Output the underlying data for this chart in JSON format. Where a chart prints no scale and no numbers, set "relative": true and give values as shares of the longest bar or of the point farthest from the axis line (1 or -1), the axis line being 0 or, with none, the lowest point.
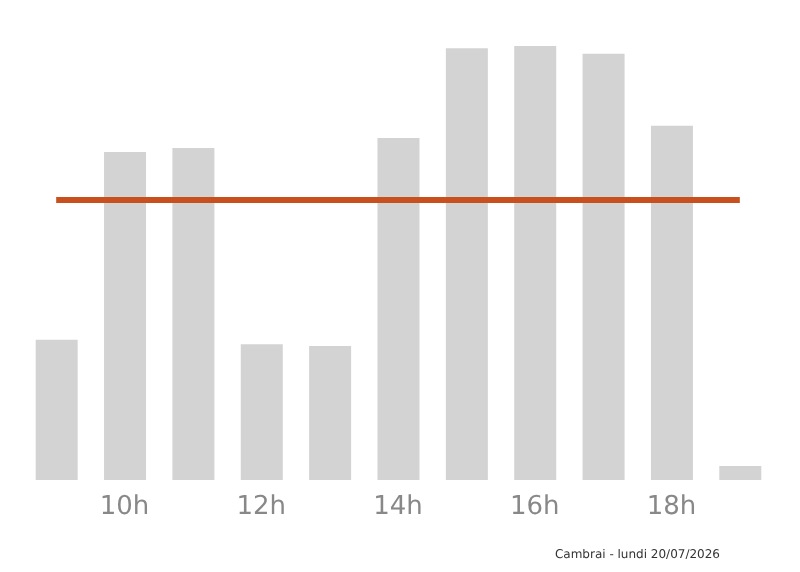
{
  "chart_data": {
    "type": "bar",
    "relative": true,
    "categories": [
      null,
      "10h",
      null,
      "12h",
      null,
      "14h",
      null,
      "16h",
      null,
      "18h",
      null
    ],
    "values": [
      0.323,
      0.756,
      0.765,
      0.313,
      0.309,
      0.788,
      0.995,
      1,
      0.982,
      0.816,
      0.032
    ],
    "color": "#d3d3d3",
    "ref_lines": [
      {
        "axis": "y",
        "value": 0.645,
        "color": "#c8501e"
      }
    ],
    "annotations": [
      "Cambrai - lundi 20/07/2026"
    ]
  }
}
